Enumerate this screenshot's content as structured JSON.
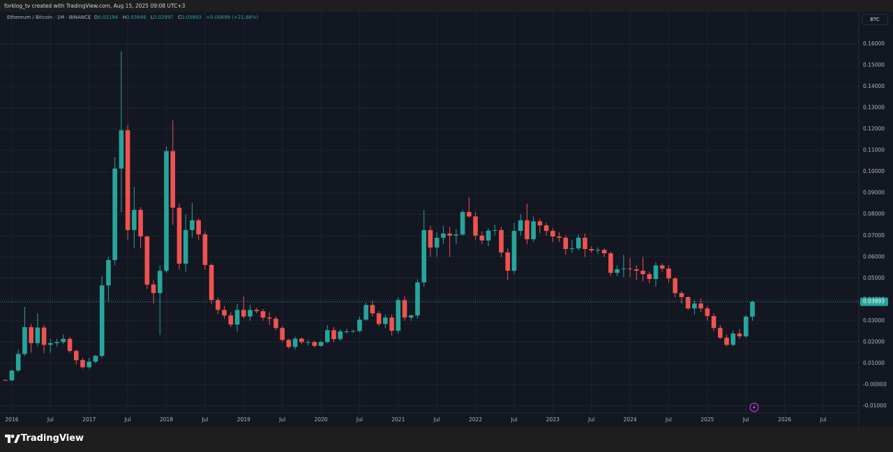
{
  "top_bar": {
    "text": "forklog_tv created with TradingView.com, Aug 15, 2025 09:08 UTC+3"
  },
  "footer": {
    "logo": "TradingView"
  },
  "chart_data": {
    "type": "candlestick",
    "symbol": "Ethereum / Bitcoin · 1M · BINANCE",
    "legend_labels": [
      "O",
      "H",
      "L",
      "C"
    ],
    "change": "+0.00699 (+21.88%)",
    "currency": "BTC",
    "up_color": "#26a69a",
    "down_color": "#ef5350",
    "grid": true,
    "ylim": [
      -0.0133,
      0.1751
    ],
    "yticks": [
      {
        "value": 0.16,
        "label": "0.16000"
      },
      {
        "value": 0.15,
        "label": "0.15000"
      },
      {
        "value": 0.14,
        "label": "0.14000"
      },
      {
        "value": 0.13,
        "label": "0.13000"
      },
      {
        "value": 0.12,
        "label": "0.12000"
      },
      {
        "value": 0.11,
        "label": "0.11000"
      },
      {
        "value": 0.1,
        "label": "0.10000"
      },
      {
        "value": 0.09,
        "label": "0.09000"
      },
      {
        "value": 0.08,
        "label": "0.08000"
      },
      {
        "value": 0.07,
        "label": "0.07000"
      },
      {
        "value": 0.06,
        "label": "0.06000"
      },
      {
        "value": 0.05,
        "label": "0.05000"
      },
      {
        "value": 0.04,
        "label": "0.04000"
      },
      {
        "value": 0.03,
        "label": "0.03000"
      },
      {
        "value": 0.02,
        "label": "0.02000"
      },
      {
        "value": 0.01,
        "label": "0.01000"
      },
      {
        "value": 0,
        "label": "-0.00000"
      },
      {
        "value": -0.01,
        "label": "-0.01000"
      }
    ],
    "xlim": [
      "2015-11",
      "2027-01"
    ],
    "xticks": [
      {
        "value": "2016-01",
        "label": "2016"
      },
      {
        "value": "2016-07",
        "label": "Jul"
      },
      {
        "value": "2017-01",
        "label": "2017"
      },
      {
        "value": "2017-07",
        "label": "Jul"
      },
      {
        "value": "2018-01",
        "label": "2018"
      },
      {
        "value": "2018-07",
        "label": "Jul"
      },
      {
        "value": "2019-01",
        "label": "2019"
      },
      {
        "value": "2019-07",
        "label": "Jul"
      },
      {
        "value": "2020-01",
        "label": "2020"
      },
      {
        "value": "2020-07",
        "label": "Jul"
      },
      {
        "value": "2021-01",
        "label": "2021"
      },
      {
        "value": "2021-07",
        "label": "Jul"
      },
      {
        "value": "2022-01",
        "label": "2022"
      },
      {
        "value": "2022-07",
        "label": "Jul"
      },
      {
        "value": "2023-01",
        "label": "2023"
      },
      {
        "value": "2023-07",
        "label": "Jul"
      },
      {
        "value": "2024-01",
        "label": "2024"
      },
      {
        "value": "2024-07",
        "label": "Jul"
      },
      {
        "value": "2025-01",
        "label": "2025"
      },
      {
        "value": "2025-07",
        "label": "Jul"
      },
      {
        "value": "2026-01",
        "label": "2026"
      },
      {
        "value": "2026-07",
        "label": "Jul"
      }
    ],
    "candles": [
      {
        "x": "2015-12",
        "o": 0.0022,
        "h": 0.0024,
        "l": 0.0018,
        "c": 0.002
      },
      {
        "x": "2016-01",
        "o": 0.002,
        "h": 0.007,
        "l": 0.0018,
        "c": 0.0066
      },
      {
        "x": "2016-02",
        "o": 0.0066,
        "h": 0.0165,
        "l": 0.006,
        "c": 0.0144
      },
      {
        "x": "2016-03",
        "o": 0.0144,
        "h": 0.0365,
        "l": 0.0135,
        "c": 0.027
      },
      {
        "x": "2016-04",
        "o": 0.027,
        "h": 0.0285,
        "l": 0.015,
        "c": 0.0195
      },
      {
        "x": "2016-05",
        "o": 0.0195,
        "h": 0.0335,
        "l": 0.018,
        "c": 0.0268
      },
      {
        "x": "2016-06",
        "o": 0.0268,
        "h": 0.028,
        "l": 0.0148,
        "c": 0.0187
      },
      {
        "x": "2016-07",
        "o": 0.0187,
        "h": 0.0215,
        "l": 0.015,
        "c": 0.0195
      },
      {
        "x": "2016-08",
        "o": 0.0195,
        "h": 0.0215,
        "l": 0.018,
        "c": 0.02
      },
      {
        "x": "2016-09",
        "o": 0.02,
        "h": 0.0235,
        "l": 0.019,
        "c": 0.0215
      },
      {
        "x": "2016-10",
        "o": 0.0215,
        "h": 0.0225,
        "l": 0.015,
        "c": 0.0158
      },
      {
        "x": "2016-11",
        "o": 0.0158,
        "h": 0.0165,
        "l": 0.0095,
        "c": 0.0115
      },
      {
        "x": "2016-12",
        "o": 0.0115,
        "h": 0.0125,
        "l": 0.0075,
        "c": 0.0082
      },
      {
        "x": "2017-01",
        "o": 0.0082,
        "h": 0.0125,
        "l": 0.0075,
        "c": 0.0108
      },
      {
        "x": "2017-02",
        "o": 0.0108,
        "h": 0.014,
        "l": 0.01,
        "c": 0.0135
      },
      {
        "x": "2017-03",
        "o": 0.0135,
        "h": 0.051,
        "l": 0.0125,
        "c": 0.0466
      },
      {
        "x": "2017-04",
        "o": 0.0466,
        "h": 0.06,
        "l": 0.039,
        "c": 0.0585
      },
      {
        "x": "2017-05",
        "o": 0.0585,
        "h": 0.107,
        "l": 0.056,
        "c": 0.1015
      },
      {
        "x": "2017-06",
        "o": 0.1015,
        "h": 0.1566,
        "l": 0.081,
        "c": 0.1195
      },
      {
        "x": "2017-07",
        "o": 0.1195,
        "h": 0.122,
        "l": 0.068,
        "c": 0.0726
      },
      {
        "x": "2017-08",
        "o": 0.0726,
        "h": 0.0929,
        "l": 0.064,
        "c": 0.0821
      },
      {
        "x": "2017-09",
        "o": 0.0821,
        "h": 0.0834,
        "l": 0.064,
        "c": 0.0696
      },
      {
        "x": "2017-10",
        "o": 0.0696,
        "h": 0.07,
        "l": 0.045,
        "c": 0.047
      },
      {
        "x": "2017-11",
        "o": 0.047,
        "h": 0.049,
        "l": 0.038,
        "c": 0.043
      },
      {
        "x": "2017-12",
        "o": 0.043,
        "h": 0.056,
        "l": 0.0233,
        "c": 0.0535
      },
      {
        "x": "2018-01",
        "o": 0.0535,
        "h": 0.112,
        "l": 0.0525,
        "c": 0.1097
      },
      {
        "x": "2018-02",
        "o": 0.1097,
        "h": 0.1241,
        "l": 0.075,
        "c": 0.0831
      },
      {
        "x": "2018-03",
        "o": 0.0831,
        "h": 0.085,
        "l": 0.054,
        "c": 0.0568
      },
      {
        "x": "2018-04",
        "o": 0.0568,
        "h": 0.08,
        "l": 0.053,
        "c": 0.0726
      },
      {
        "x": "2018-05",
        "o": 0.0726,
        "h": 0.0854,
        "l": 0.069,
        "c": 0.0772
      },
      {
        "x": "2018-06",
        "o": 0.0772,
        "h": 0.078,
        "l": 0.068,
        "c": 0.0706
      },
      {
        "x": "2018-07",
        "o": 0.0706,
        "h": 0.072,
        "l": 0.054,
        "c": 0.0562
      },
      {
        "x": "2018-08",
        "o": 0.0562,
        "h": 0.057,
        "l": 0.038,
        "c": 0.0397
      },
      {
        "x": "2018-09",
        "o": 0.0397,
        "h": 0.041,
        "l": 0.033,
        "c": 0.0351
      },
      {
        "x": "2018-10",
        "o": 0.0351,
        "h": 0.037,
        "l": 0.031,
        "c": 0.0325
      },
      {
        "x": "2018-11",
        "o": 0.0325,
        "h": 0.034,
        "l": 0.027,
        "c": 0.0282
      },
      {
        "x": "2018-12",
        "o": 0.0282,
        "h": 0.038,
        "l": 0.025,
        "c": 0.0351
      },
      {
        "x": "2019-01",
        "o": 0.0351,
        "h": 0.0414,
        "l": 0.031,
        "c": 0.032
      },
      {
        "x": "2019-02",
        "o": 0.032,
        "h": 0.0375,
        "l": 0.03,
        "c": 0.0351
      },
      {
        "x": "2019-03",
        "o": 0.0351,
        "h": 0.036,
        "l": 0.0335,
        "c": 0.0345
      },
      {
        "x": "2019-04",
        "o": 0.0345,
        "h": 0.0355,
        "l": 0.03,
        "c": 0.0315
      },
      {
        "x": "2019-05",
        "o": 0.0315,
        "h": 0.034,
        "l": 0.028,
        "c": 0.031
      },
      {
        "x": "2019-06",
        "o": 0.031,
        "h": 0.032,
        "l": 0.0255,
        "c": 0.0266
      },
      {
        "x": "2019-07",
        "o": 0.0266,
        "h": 0.0275,
        "l": 0.02,
        "c": 0.021
      },
      {
        "x": "2019-08",
        "o": 0.021,
        "h": 0.0215,
        "l": 0.017,
        "c": 0.0177
      },
      {
        "x": "2019-09",
        "o": 0.0177,
        "h": 0.0225,
        "l": 0.0165,
        "c": 0.0216
      },
      {
        "x": "2019-10",
        "o": 0.0216,
        "h": 0.0222,
        "l": 0.019,
        "c": 0.02
      },
      {
        "x": "2019-11",
        "o": 0.02,
        "h": 0.021,
        "l": 0.0185,
        "c": 0.02
      },
      {
        "x": "2019-12",
        "o": 0.02,
        "h": 0.0205,
        "l": 0.0175,
        "c": 0.0182
      },
      {
        "x": "2020-01",
        "o": 0.0182,
        "h": 0.0205,
        "l": 0.0178,
        "c": 0.02
      },
      {
        "x": "2020-02",
        "o": 0.02,
        "h": 0.028,
        "l": 0.0195,
        "c": 0.0256
      },
      {
        "x": "2020-03",
        "o": 0.0256,
        "h": 0.027,
        "l": 0.02,
        "c": 0.0214
      },
      {
        "x": "2020-04",
        "o": 0.0214,
        "h": 0.026,
        "l": 0.0205,
        "c": 0.025
      },
      {
        "x": "2020-05",
        "o": 0.025,
        "h": 0.0262,
        "l": 0.024,
        "c": 0.025
      },
      {
        "x": "2020-06",
        "o": 0.025,
        "h": 0.0258,
        "l": 0.0243,
        "c": 0.0252
      },
      {
        "x": "2020-07",
        "o": 0.0252,
        "h": 0.032,
        "l": 0.0245,
        "c": 0.0305
      },
      {
        "x": "2020-08",
        "o": 0.0305,
        "h": 0.0385,
        "l": 0.03,
        "c": 0.0374
      },
      {
        "x": "2020-09",
        "o": 0.0374,
        "h": 0.0395,
        "l": 0.032,
        "c": 0.0335
      },
      {
        "x": "2020-10",
        "o": 0.0335,
        "h": 0.0345,
        "l": 0.0275,
        "c": 0.0285
      },
      {
        "x": "2020-11",
        "o": 0.0285,
        "h": 0.033,
        "l": 0.0265,
        "c": 0.0315
      },
      {
        "x": "2020-12",
        "o": 0.0315,
        "h": 0.033,
        "l": 0.023,
        "c": 0.0253
      },
      {
        "x": "2021-01",
        "o": 0.0253,
        "h": 0.041,
        "l": 0.024,
        "c": 0.0397
      },
      {
        "x": "2021-02",
        "o": 0.0397,
        "h": 0.0415,
        "l": 0.03,
        "c": 0.0315
      },
      {
        "x": "2021-03",
        "o": 0.0315,
        "h": 0.033,
        "l": 0.03,
        "c": 0.0325
      },
      {
        "x": "2021-04",
        "o": 0.0325,
        "h": 0.0495,
        "l": 0.031,
        "c": 0.048
      },
      {
        "x": "2021-05",
        "o": 0.048,
        "h": 0.082,
        "l": 0.046,
        "c": 0.0726
      },
      {
        "x": "2021-06",
        "o": 0.0726,
        "h": 0.0745,
        "l": 0.06,
        "c": 0.0644
      },
      {
        "x": "2021-07",
        "o": 0.0644,
        "h": 0.0715,
        "l": 0.06,
        "c": 0.069
      },
      {
        "x": "2021-08",
        "o": 0.069,
        "h": 0.0745,
        "l": 0.066,
        "c": 0.071
      },
      {
        "x": "2021-09",
        "o": 0.071,
        "h": 0.074,
        "l": 0.06,
        "c": 0.07
      },
      {
        "x": "2021-10",
        "o": 0.07,
        "h": 0.073,
        "l": 0.066,
        "c": 0.0705
      },
      {
        "x": "2021-11",
        "o": 0.0705,
        "h": 0.082,
        "l": 0.07,
        "c": 0.0811
      },
      {
        "x": "2021-12",
        "o": 0.0811,
        "h": 0.088,
        "l": 0.0785,
        "c": 0.079
      },
      {
        "x": "2022-01",
        "o": 0.079,
        "h": 0.081,
        "l": 0.068,
        "c": 0.07
      },
      {
        "x": "2022-02",
        "o": 0.07,
        "h": 0.072,
        "l": 0.066,
        "c": 0.0677
      },
      {
        "x": "2022-03",
        "o": 0.0677,
        "h": 0.0735,
        "l": 0.065,
        "c": 0.0723
      },
      {
        "x": "2022-04",
        "o": 0.0723,
        "h": 0.075,
        "l": 0.07,
        "c": 0.0726
      },
      {
        "x": "2022-05",
        "o": 0.0726,
        "h": 0.074,
        "l": 0.06,
        "c": 0.0621
      },
      {
        "x": "2022-06",
        "o": 0.0621,
        "h": 0.064,
        "l": 0.049,
        "c": 0.0535
      },
      {
        "x": "2022-07",
        "o": 0.0535,
        "h": 0.076,
        "l": 0.052,
        "c": 0.0722
      },
      {
        "x": "2022-08",
        "o": 0.0722,
        "h": 0.08,
        "l": 0.07,
        "c": 0.0772
      },
      {
        "x": "2022-09",
        "o": 0.0772,
        "h": 0.085,
        "l": 0.066,
        "c": 0.0683
      },
      {
        "x": "2022-10",
        "o": 0.0683,
        "h": 0.079,
        "l": 0.067,
        "c": 0.0767
      },
      {
        "x": "2022-11",
        "o": 0.0767,
        "h": 0.078,
        "l": 0.071,
        "c": 0.0748
      },
      {
        "x": "2022-12",
        "o": 0.0748,
        "h": 0.076,
        "l": 0.07,
        "c": 0.0722
      },
      {
        "x": "2023-01",
        "o": 0.0722,
        "h": 0.0735,
        "l": 0.067,
        "c": 0.0696
      },
      {
        "x": "2023-02",
        "o": 0.0696,
        "h": 0.0715,
        "l": 0.067,
        "c": 0.069
      },
      {
        "x": "2023-03",
        "o": 0.069,
        "h": 0.07,
        "l": 0.061,
        "c": 0.0637
      },
      {
        "x": "2023-04",
        "o": 0.0637,
        "h": 0.068,
        "l": 0.062,
        "c": 0.064
      },
      {
        "x": "2023-05",
        "o": 0.064,
        "h": 0.0705,
        "l": 0.063,
        "c": 0.069
      },
      {
        "x": "2023-06",
        "o": 0.069,
        "h": 0.071,
        "l": 0.06,
        "c": 0.0637
      },
      {
        "x": "2023-07",
        "o": 0.0637,
        "h": 0.065,
        "l": 0.062,
        "c": 0.063
      },
      {
        "x": "2023-08",
        "o": 0.063,
        "h": 0.0645,
        "l": 0.0615,
        "c": 0.0633
      },
      {
        "x": "2023-09",
        "o": 0.0633,
        "h": 0.064,
        "l": 0.06,
        "c": 0.0617
      },
      {
        "x": "2023-10",
        "o": 0.0617,
        "h": 0.0625,
        "l": 0.051,
        "c": 0.0525
      },
      {
        "x": "2023-11",
        "o": 0.0525,
        "h": 0.056,
        "l": 0.051,
        "c": 0.0542
      },
      {
        "x": "2023-12",
        "o": 0.0542,
        "h": 0.061,
        "l": 0.0505,
        "c": 0.0545
      },
      {
        "x": "2024-01",
        "o": 0.0545,
        "h": 0.0595,
        "l": 0.0505,
        "c": 0.0542
      },
      {
        "x": "2024-02",
        "o": 0.0542,
        "h": 0.056,
        "l": 0.049,
        "c": 0.0535
      },
      {
        "x": "2024-03",
        "o": 0.0535,
        "h": 0.06,
        "l": 0.0485,
        "c": 0.0519
      },
      {
        "x": "2024-04",
        "o": 0.0519,
        "h": 0.053,
        "l": 0.0475,
        "c": 0.0496
      },
      {
        "x": "2024-05",
        "o": 0.0496,
        "h": 0.0575,
        "l": 0.046,
        "c": 0.056
      },
      {
        "x": "2024-06",
        "o": 0.056,
        "h": 0.057,
        "l": 0.053,
        "c": 0.0545
      },
      {
        "x": "2024-07",
        "o": 0.0545,
        "h": 0.056,
        "l": 0.048,
        "c": 0.0499
      },
      {
        "x": "2024-08",
        "o": 0.0499,
        "h": 0.0505,
        "l": 0.041,
        "c": 0.043
      },
      {
        "x": "2024-09",
        "o": 0.043,
        "h": 0.044,
        "l": 0.038,
        "c": 0.0411
      },
      {
        "x": "2024-10",
        "o": 0.0411,
        "h": 0.0415,
        "l": 0.035,
        "c": 0.0358
      },
      {
        "x": "2024-11",
        "o": 0.0358,
        "h": 0.0395,
        "l": 0.033,
        "c": 0.0381
      },
      {
        "x": "2024-12",
        "o": 0.0381,
        "h": 0.0405,
        "l": 0.034,
        "c": 0.0358
      },
      {
        "x": "2025-01",
        "o": 0.0358,
        "h": 0.037,
        "l": 0.03,
        "c": 0.0322
      },
      {
        "x": "2025-02",
        "o": 0.0322,
        "h": 0.0335,
        "l": 0.025,
        "c": 0.0266
      },
      {
        "x": "2025-03",
        "o": 0.0266,
        "h": 0.028,
        "l": 0.0215,
        "c": 0.022
      },
      {
        "x": "2025-04",
        "o": 0.022,
        "h": 0.0235,
        "l": 0.018,
        "c": 0.0187
      },
      {
        "x": "2025-05",
        "o": 0.0187,
        "h": 0.0255,
        "l": 0.018,
        "c": 0.024
      },
      {
        "x": "2025-06",
        "o": 0.024,
        "h": 0.026,
        "l": 0.0215,
        "c": 0.0227
      },
      {
        "x": "2025-07",
        "o": 0.0227,
        "h": 0.0325,
        "l": 0.022,
        "c": 0.03194
      },
      {
        "x": "2025-08",
        "o": 0.03194,
        "h": 0.03946,
        "l": 0.02997,
        "c": 0.03893
      }
    ]
  }
}
